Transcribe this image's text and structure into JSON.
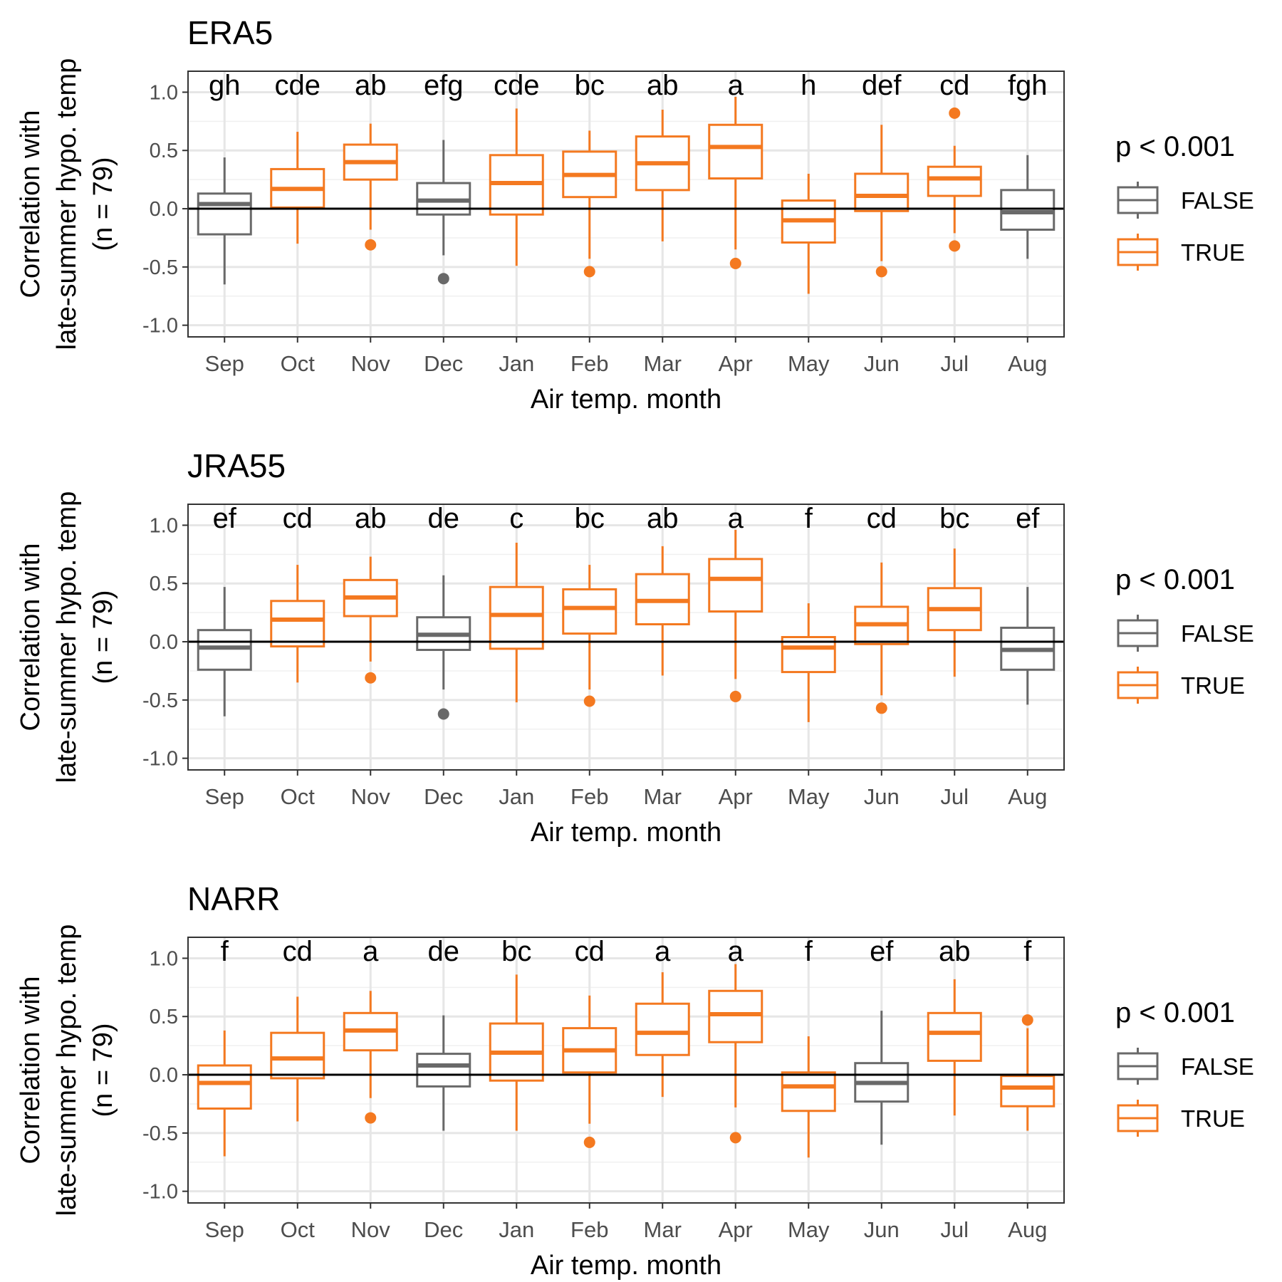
{
  "x_label": "Air temp. month",
  "y_label_lines": [
    "Correlation with",
    "late-summer hypo. temp",
    "(n = 79)"
  ],
  "legend": {
    "title": "p < 0.001",
    "entries": [
      {
        "label": "FALSE",
        "color": "#696969"
      },
      {
        "label": "TRUE",
        "color": "#F47920"
      }
    ]
  },
  "colors": {
    "FALSE": "#696969",
    "TRUE": "#F47920",
    "zero_line": "#000000"
  },
  "chart_data": [
    {
      "type": "box",
      "title": "ERA5",
      "xlabel": "Air temp. month",
      "ylabel": "Correlation with late-summer hypo. temp (n = 79)",
      "ylim": [
        -1.1,
        1.18
      ],
      "yticks": [
        1.0,
        0.5,
        0.0,
        -0.5,
        -1.0
      ],
      "ytick_labels": [
        "1.0",
        "0.5",
        "0.0",
        "-0.5",
        "-1.0"
      ],
      "reference_line": 0,
      "grid": true,
      "legend_position": "right",
      "categories": [
        "Sep",
        "Oct",
        "Nov",
        "Dec",
        "Jan",
        "Feb",
        "Mar",
        "Apr",
        "May",
        "Jun",
        "Jul",
        "Aug"
      ],
      "letters": [
        "gh",
        "cde",
        "ab",
        "efg",
        "cde",
        "bc",
        "ab",
        "a",
        "h",
        "def",
        "cd",
        "fgh"
      ],
      "significant": [
        false,
        true,
        true,
        false,
        true,
        true,
        true,
        true,
        true,
        true,
        true,
        false
      ],
      "boxes": [
        {
          "min": -0.65,
          "q1": -0.22,
          "median": 0.04,
          "q3": 0.13,
          "max": 0.44,
          "outliers": []
        },
        {
          "min": -0.3,
          "q1": 0.01,
          "median": 0.17,
          "q3": 0.34,
          "max": 0.66,
          "outliers": []
        },
        {
          "min": -0.18,
          "q1": 0.25,
          "median": 0.4,
          "q3": 0.55,
          "max": 0.73,
          "outliers": [
            -0.31
          ]
        },
        {
          "min": -0.4,
          "q1": -0.05,
          "median": 0.07,
          "q3": 0.22,
          "max": 0.59,
          "outliers": [
            -0.6
          ]
        },
        {
          "min": -0.49,
          "q1": -0.05,
          "median": 0.22,
          "q3": 0.46,
          "max": 0.86,
          "outliers": []
        },
        {
          "min": -0.43,
          "q1": 0.1,
          "median": 0.29,
          "q3": 0.49,
          "max": 0.67,
          "outliers": [
            -0.54
          ]
        },
        {
          "min": -0.28,
          "q1": 0.16,
          "median": 0.39,
          "q3": 0.62,
          "max": 0.85,
          "outliers": []
        },
        {
          "min": -0.35,
          "q1": 0.26,
          "median": 0.53,
          "q3": 0.72,
          "max": 0.96,
          "outliers": [
            -0.47
          ]
        },
        {
          "min": -0.73,
          "q1": -0.29,
          "median": -0.1,
          "q3": 0.07,
          "max": 0.3,
          "outliers": []
        },
        {
          "min": -0.45,
          "q1": -0.02,
          "median": 0.11,
          "q3": 0.3,
          "max": 0.72,
          "outliers": [
            -0.54
          ]
        },
        {
          "min": -0.21,
          "q1": 0.11,
          "median": 0.26,
          "q3": 0.36,
          "max": 0.54,
          "outliers": [
            0.82,
            -0.32
          ]
        },
        {
          "min": -0.43,
          "q1": -0.18,
          "median": -0.03,
          "q3": 0.16,
          "max": 0.46,
          "outliers": []
        }
      ]
    },
    {
      "type": "box",
      "title": "JRA55",
      "xlabel": "Air temp. month",
      "ylabel": "Correlation with late-summer hypo. temp (n = 79)",
      "ylim": [
        -1.1,
        1.18
      ],
      "yticks": [
        1.0,
        0.5,
        0.0,
        -0.5,
        -1.0
      ],
      "ytick_labels": [
        "1.0",
        "0.5",
        "0.0",
        "-0.5",
        "-1.0"
      ],
      "reference_line": 0,
      "grid": true,
      "legend_position": "right",
      "categories": [
        "Sep",
        "Oct",
        "Nov",
        "Dec",
        "Jan",
        "Feb",
        "Mar",
        "Apr",
        "May",
        "Jun",
        "Jul",
        "Aug"
      ],
      "letters": [
        "ef",
        "cd",
        "ab",
        "de",
        "c",
        "bc",
        "ab",
        "a",
        "f",
        "cd",
        "bc",
        "ef"
      ],
      "significant": [
        false,
        true,
        true,
        false,
        true,
        true,
        true,
        true,
        true,
        true,
        true,
        false
      ],
      "boxes": [
        {
          "min": -0.64,
          "q1": -0.24,
          "median": -0.05,
          "q3": 0.1,
          "max": 0.47,
          "outliers": []
        },
        {
          "min": -0.35,
          "q1": -0.04,
          "median": 0.19,
          "q3": 0.35,
          "max": 0.66,
          "outliers": []
        },
        {
          "min": -0.17,
          "q1": 0.22,
          "median": 0.38,
          "q3": 0.53,
          "max": 0.73,
          "outliers": [
            -0.31
          ]
        },
        {
          "min": -0.41,
          "q1": -0.07,
          "median": 0.06,
          "q3": 0.21,
          "max": 0.57,
          "outliers": [
            -0.62
          ]
        },
        {
          "min": -0.52,
          "q1": -0.06,
          "median": 0.23,
          "q3": 0.47,
          "max": 0.85,
          "outliers": []
        },
        {
          "min": -0.41,
          "q1": 0.07,
          "median": 0.29,
          "q3": 0.45,
          "max": 0.66,
          "outliers": [
            -0.51
          ]
        },
        {
          "min": -0.29,
          "q1": 0.15,
          "median": 0.35,
          "q3": 0.58,
          "max": 0.82,
          "outliers": []
        },
        {
          "min": -0.32,
          "q1": 0.26,
          "median": 0.54,
          "q3": 0.71,
          "max": 0.96,
          "outliers": [
            -0.47
          ]
        },
        {
          "min": -0.69,
          "q1": -0.26,
          "median": -0.05,
          "q3": 0.04,
          "max": 0.33,
          "outliers": []
        },
        {
          "min": -0.46,
          "q1": -0.02,
          "median": 0.15,
          "q3": 0.3,
          "max": 0.68,
          "outliers": [
            -0.57
          ]
        },
        {
          "min": -0.3,
          "q1": 0.1,
          "median": 0.28,
          "q3": 0.46,
          "max": 0.8,
          "outliers": []
        },
        {
          "min": -0.54,
          "q1": -0.24,
          "median": -0.07,
          "q3": 0.12,
          "max": 0.47,
          "outliers": []
        }
      ]
    },
    {
      "type": "box",
      "title": "NARR",
      "xlabel": "Air temp. month",
      "ylabel": "Correlation with late-summer hypo. temp (n = 79)",
      "ylim": [
        -1.1,
        1.18
      ],
      "yticks": [
        1.0,
        0.5,
        0.0,
        -0.5,
        -1.0
      ],
      "ytick_labels": [
        "1.0",
        "0.5",
        "0.0",
        "-0.5",
        "-1.0"
      ],
      "reference_line": 0,
      "grid": true,
      "legend_position": "right",
      "categories": [
        "Sep",
        "Oct",
        "Nov",
        "Dec",
        "Jan",
        "Feb",
        "Mar",
        "Apr",
        "May",
        "Jun",
        "Jul",
        "Aug"
      ],
      "letters": [
        "f",
        "cd",
        "a",
        "de",
        "bc",
        "cd",
        "a",
        "a",
        "f",
        "ef",
        "ab",
        "f"
      ],
      "significant": [
        true,
        true,
        true,
        false,
        true,
        true,
        true,
        true,
        true,
        false,
        true,
        true
      ],
      "boxes": [
        {
          "min": -0.7,
          "q1": -0.29,
          "median": -0.07,
          "q3": 0.08,
          "max": 0.38,
          "outliers": []
        },
        {
          "min": -0.4,
          "q1": -0.03,
          "median": 0.14,
          "q3": 0.36,
          "max": 0.67,
          "outliers": []
        },
        {
          "min": -0.2,
          "q1": 0.21,
          "median": 0.38,
          "q3": 0.53,
          "max": 0.72,
          "outliers": [
            -0.37
          ]
        },
        {
          "min": -0.48,
          "q1": -0.1,
          "median": 0.08,
          "q3": 0.18,
          "max": 0.51,
          "outliers": []
        },
        {
          "min": -0.48,
          "q1": -0.05,
          "median": 0.19,
          "q3": 0.44,
          "max": 0.86,
          "outliers": []
        },
        {
          "min": -0.42,
          "q1": 0.02,
          "median": 0.21,
          "q3": 0.4,
          "max": 0.68,
          "outliers": [
            -0.58
          ]
        },
        {
          "min": -0.19,
          "q1": 0.17,
          "median": 0.36,
          "q3": 0.61,
          "max": 0.88,
          "outliers": []
        },
        {
          "min": -0.28,
          "q1": 0.28,
          "median": 0.52,
          "q3": 0.72,
          "max": 0.95,
          "outliers": [
            -0.54
          ]
        },
        {
          "min": -0.71,
          "q1": -0.31,
          "median": -0.1,
          "q3": 0.02,
          "max": 0.33,
          "outliers": []
        },
        {
          "min": -0.6,
          "q1": -0.23,
          "median": -0.07,
          "q3": 0.1,
          "max": 0.55,
          "outliers": []
        },
        {
          "min": -0.35,
          "q1": 0.12,
          "median": 0.36,
          "q3": 0.53,
          "max": 0.82,
          "outliers": []
        },
        {
          "min": -0.48,
          "q1": -0.27,
          "median": -0.11,
          "q3": -0.01,
          "max": 0.4,
          "outliers": [
            0.47
          ]
        }
      ]
    }
  ]
}
